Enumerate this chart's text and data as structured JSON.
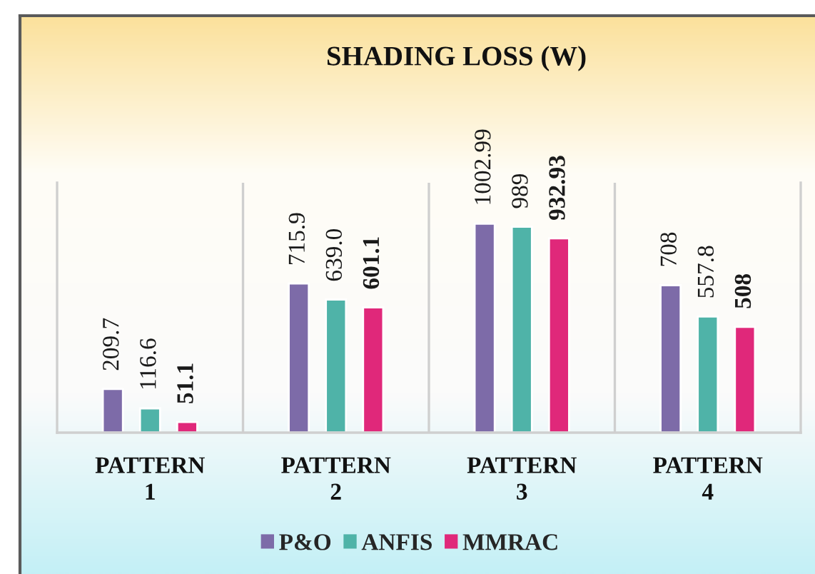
{
  "chart_data": {
    "type": "bar",
    "title": "SHADING LOSS (W)",
    "categories": [
      "PATTERN 1",
      "PATTERN 2",
      "PATTERN 3",
      "PATTERN 4"
    ],
    "series": [
      {
        "name": "P&O",
        "color": "#7d6ba8",
        "values": [
          209.7,
          715.9,
          1002.99,
          708
        ],
        "value_labels": [
          "209.7",
          "715.9",
          "1002.99",
          "708"
        ]
      },
      {
        "name": "ANFIS",
        "color": "#4fb3a8",
        "values": [
          116.6,
          639.0,
          989,
          557.8
        ],
        "value_labels": [
          "116.6",
          "639.0",
          "989",
          "557.8"
        ]
      },
      {
        "name": "MMRAC",
        "color": "#e0287a",
        "values": [
          51.1,
          601.1,
          932.93,
          508
        ],
        "value_labels": [
          "51.1",
          "601.1",
          "932.93",
          "508"
        ]
      }
    ],
    "ylim": [
      0,
      1200
    ],
    "tick_labels": "x",
    "grid": "x",
    "legend": "bottom"
  }
}
